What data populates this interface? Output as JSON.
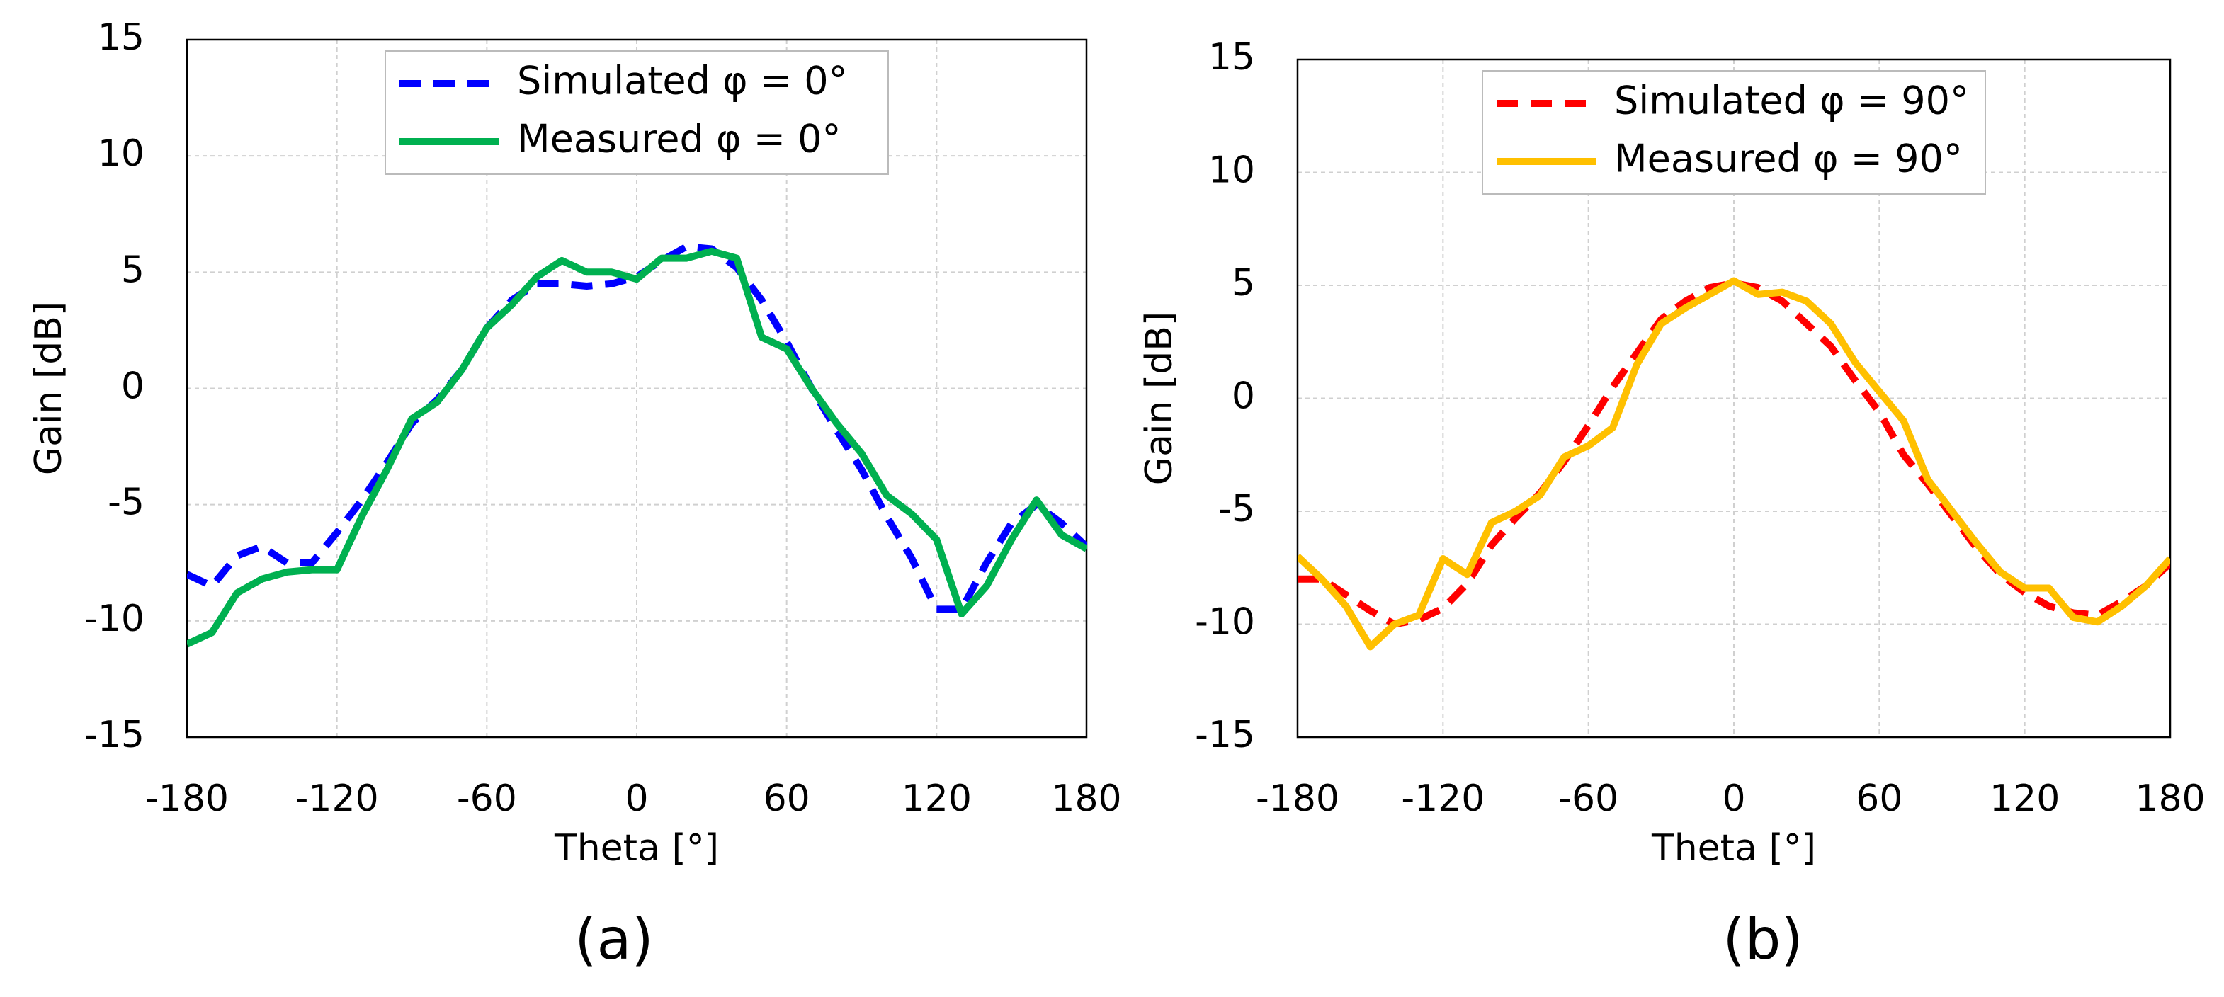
{
  "chart_data": [
    {
      "type": "line",
      "caption": "(a)",
      "xlabel": "Theta [°]",
      "ylabel": "Gain [dB]",
      "x": [
        -180,
        -170,
        -160,
        -150,
        -140,
        -130,
        -120,
        -110,
        -100,
        -90,
        -80,
        -70,
        -60,
        -50,
        -40,
        -30,
        -20,
        -10,
        0,
        10,
        20,
        30,
        40,
        50,
        60,
        70,
        80,
        90,
        100,
        110,
        120,
        130,
        140,
        150,
        160,
        170,
        180
      ],
      "xlim": [
        -180,
        180
      ],
      "xticks": [
        -180,
        -120,
        -60,
        0,
        60,
        120,
        180
      ],
      "ylim": [
        -15,
        15
      ],
      "yticks": [
        -15,
        -10,
        -5,
        0,
        5,
        10,
        15
      ],
      "grid": true,
      "legend": "upper center",
      "series": [
        {
          "name": "Simulated φ = 0°",
          "color": "#0000ff",
          "style": "dashed",
          "values": [
            -8,
            -8.5,
            -7.2,
            -6.8,
            -7.5,
            -7.5,
            -6.2,
            -4.8,
            -3.2,
            -1.5,
            -0.5,
            0.8,
            2.6,
            3.8,
            4.5,
            4.5,
            4.4,
            4.5,
            4.8,
            5.5,
            6.1,
            6.0,
            5.2,
            3.8,
            2.0,
            0.0,
            -1.8,
            -3.5,
            -5.5,
            -7.3,
            -9.5,
            -9.5,
            -7.5,
            -5.8,
            -5.0,
            -5.8,
            -6.8
          ]
        },
        {
          "name": "Measured φ = 0°",
          "color": "#00b050",
          "style": "solid",
          "values": [
            -11,
            -10.5,
            -8.8,
            -8.2,
            -7.9,
            -7.8,
            -7.8,
            -5.5,
            -3.5,
            -1.3,
            -0.6,
            0.8,
            2.6,
            3.6,
            4.8,
            5.5,
            5.0,
            5.0,
            4.7,
            5.6,
            5.6,
            5.9,
            5.6,
            2.2,
            1.7,
            0.0,
            -1.5,
            -2.8,
            -4.6,
            -5.4,
            -6.5,
            -9.7,
            -8.5,
            -6.5,
            -4.8,
            -6.3,
            -6.9
          ]
        }
      ]
    },
    {
      "type": "line",
      "caption": "(b)",
      "xlabel": "Theta [°]",
      "ylabel": "Gain [dB]",
      "x": [
        -180,
        -170,
        -160,
        -150,
        -140,
        -130,
        -120,
        -110,
        -100,
        -90,
        -80,
        -70,
        -60,
        -50,
        -40,
        -30,
        -20,
        -10,
        0,
        10,
        20,
        30,
        40,
        50,
        60,
        70,
        80,
        90,
        100,
        110,
        120,
        130,
        140,
        150,
        160,
        170,
        180
      ],
      "xlim": [
        -180,
        180
      ],
      "xticks": [
        -180,
        -120,
        -60,
        0,
        60,
        120,
        180
      ],
      "ylim": [
        -15,
        15
      ],
      "yticks": [
        -15,
        -10,
        -5,
        0,
        5,
        10,
        15
      ],
      "grid": true,
      "legend": "upper center",
      "series": [
        {
          "name": "Simulated φ = 90°",
          "color": "#ff0000",
          "style": "dashed",
          "values": [
            -8,
            -8,
            -8.7,
            -9.4,
            -10,
            -9.8,
            -9.3,
            -8.2,
            -6.5,
            -5.3,
            -4.2,
            -2.8,
            -1.2,
            0.5,
            2.0,
            3.5,
            4.3,
            4.9,
            5.1,
            4.9,
            4.3,
            3.3,
            2.3,
            0.8,
            -0.6,
            -2.5,
            -3.8,
            -5.2,
            -6.6,
            -7.8,
            -8.6,
            -9.2,
            -9.5,
            -9.6,
            -9.0,
            -8.3,
            -7.3
          ]
        },
        {
          "name": "Measured φ = 90°",
          "color": "#ffc000",
          "style": "solid",
          "values": [
            -7,
            -8,
            -9.2,
            -11,
            -10,
            -9.6,
            -7.1,
            -7.8,
            -5.5,
            -5.0,
            -4.3,
            -2.6,
            -2.1,
            -1.3,
            1.5,
            3.3,
            4.0,
            4.6,
            5.2,
            4.6,
            4.7,
            4.3,
            3.3,
            1.6,
            0.3,
            -1.0,
            -3.6,
            -5.0,
            -6.4,
            -7.7,
            -8.4,
            -8.4,
            -9.7,
            -9.9,
            -9.2,
            -8.3,
            -7.1
          ]
        }
      ]
    }
  ]
}
